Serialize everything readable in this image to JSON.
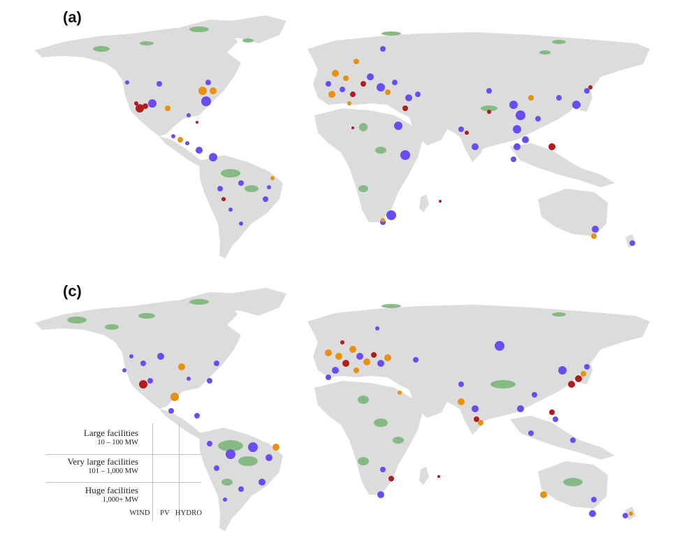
{
  "panels": [
    {
      "label": "(a)"
    },
    {
      "label": "(c)"
    }
  ],
  "legend": {
    "rows": [
      {
        "title": "Large facilities",
        "range": "10 – 100 MW"
      },
      {
        "title": "Very large facilities",
        "range": "101 – 1,000 MW"
      },
      {
        "title": "Huge facilities",
        "range": "1,000+ MW"
      }
    ],
    "columns": [
      "WIND",
      "PV",
      "HYDRO"
    ]
  },
  "colors": {
    "wind": "#e8900f",
    "pv": "#b11d1d",
    "hydro": "#6a4cf0",
    "land": "#dcdcdc",
    "protected_area": "#7fb77e"
  }
}
